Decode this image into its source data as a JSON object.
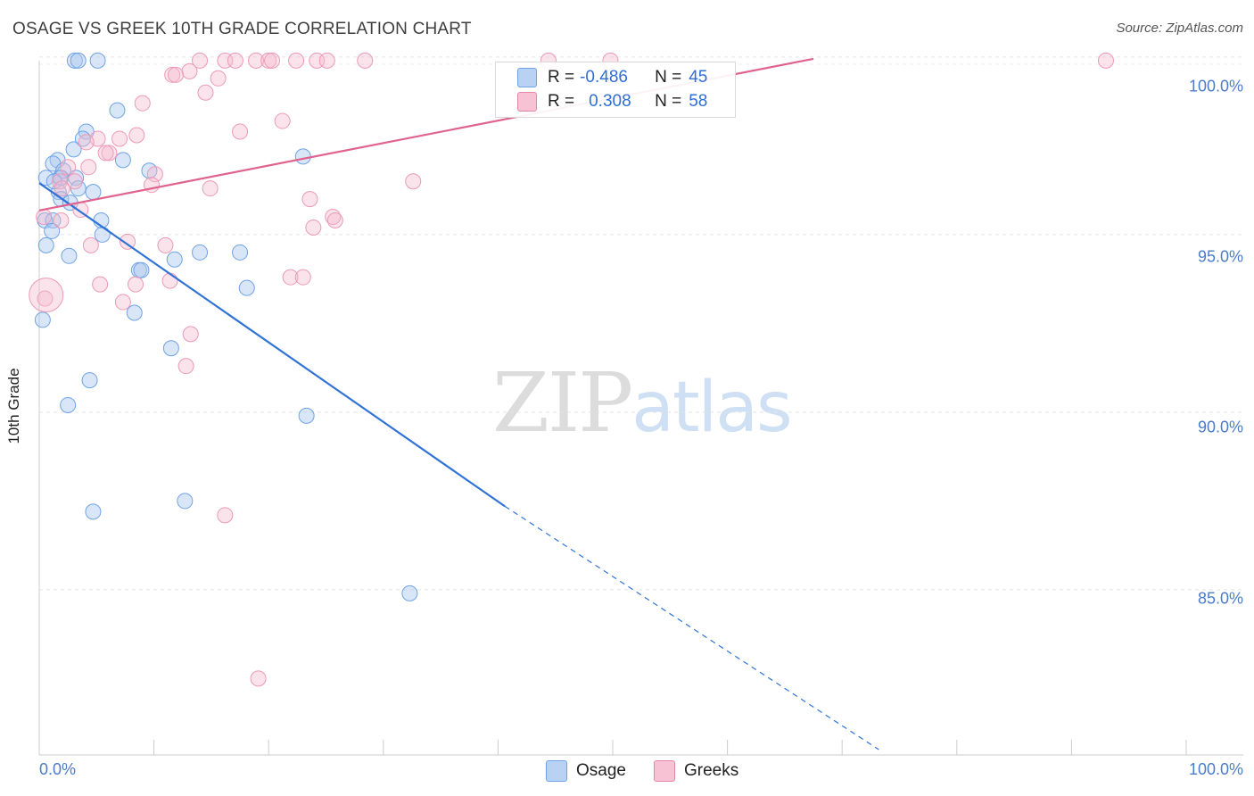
{
  "title": "OSAGE VS GREEK 10TH GRADE CORRELATION CHART",
  "source": "Source: ZipAtlas.com",
  "watermark": {
    "zip": "ZIP",
    "atlas": "atlas"
  },
  "legend": {
    "r_label": "R =",
    "n_label": "N =",
    "series": [
      {
        "name": "Osage",
        "r": "-0.486",
        "n": "45",
        "color": "#6fa3e6",
        "fill": "#b9d2f3"
      },
      {
        "name": "Greeks",
        "r": "0.308",
        "n": "58",
        "color": "#e986a7",
        "fill": "#f7c3d4"
      }
    ]
  },
  "chart_data": {
    "type": "scatter",
    "title": "OSAGE VS GREEK 10TH GRADE CORRELATION CHART",
    "xlabel": "",
    "ylabel": "10th Grade",
    "xlim": [
      0,
      100
    ],
    "ylim": [
      80.5,
      100.4
    ],
    "x_tick_labels": [
      "0.0%",
      "100.0%"
    ],
    "y_ticks": [
      85,
      90,
      95,
      100
    ],
    "y_tick_labels": [
      "85.0%",
      "90.0%",
      "95.0%",
      "100.0%"
    ],
    "series": [
      {
        "name": "Osage",
        "color": "#3a78d4",
        "points": [
          [
            3.1,
            99.9
          ],
          [
            3.4,
            99.9
          ],
          [
            5.1,
            99.9
          ],
          [
            6.8,
            98.5
          ],
          [
            4.1,
            97.9
          ],
          [
            3.8,
            97.7
          ],
          [
            3,
            97.4
          ],
          [
            7.3,
            97.1
          ],
          [
            1.6,
            97.1
          ],
          [
            1.2,
            97
          ],
          [
            1.8,
            96.6
          ],
          [
            0.6,
            96.6
          ],
          [
            2.1,
            96.8
          ],
          [
            1.9,
            96.6
          ],
          [
            3.2,
            96.6
          ],
          [
            1.7,
            96.2
          ],
          [
            3.4,
            96.3
          ],
          [
            4.7,
            96.2
          ],
          [
            1.9,
            96
          ],
          [
            2.7,
            95.9
          ],
          [
            0.5,
            95.4
          ],
          [
            1.2,
            95.4
          ],
          [
            5.4,
            95.4
          ],
          [
            1.1,
            95.1
          ],
          [
            5.5,
            95
          ],
          [
            23,
            97.2
          ],
          [
            9.6,
            96.8
          ],
          [
            0.6,
            94.7
          ],
          [
            2.6,
            94.4
          ],
          [
            14,
            94.5
          ],
          [
            17.5,
            94.5
          ],
          [
            11.8,
            94.3
          ],
          [
            8.7,
            94
          ],
          [
            8.9,
            94
          ],
          [
            18.1,
            93.5
          ],
          [
            8.3,
            92.8
          ],
          [
            0.3,
            92.6
          ],
          [
            11.5,
            91.8
          ],
          [
            4.4,
            90.9
          ],
          [
            2.5,
            90.2
          ],
          [
            23.3,
            89.9
          ],
          [
            12.7,
            87.5
          ],
          [
            4.7,
            87.2
          ],
          [
            32.3,
            84.9
          ],
          [
            1.3,
            96.5
          ]
        ],
        "trend": {
          "x": [
            0,
            40.6
          ],
          "y": [
            96.45,
            87.35
          ],
          "dashed_to": [
            73.2,
            80.5
          ]
        }
      },
      {
        "name": "Greeks",
        "color": "#e0628f",
        "points": [
          [
            14,
            99.9
          ],
          [
            16.2,
            99.9
          ],
          [
            17.1,
            99.9
          ],
          [
            18.9,
            99.9
          ],
          [
            20,
            99.9
          ],
          [
            20.3,
            99.9
          ],
          [
            22.4,
            99.9
          ],
          [
            24.2,
            99.9
          ],
          [
            25.1,
            99.9
          ],
          [
            28.4,
            99.9
          ],
          [
            44.4,
            99.9
          ],
          [
            49.8,
            99.9
          ],
          [
            93,
            99.9
          ],
          [
            11.6,
            99.5
          ],
          [
            13.1,
            99.6
          ],
          [
            11.9,
            99.5
          ],
          [
            15.6,
            99.4
          ],
          [
            14.5,
            99
          ],
          [
            9,
            98.7
          ],
          [
            21.2,
            98.2
          ],
          [
            8.5,
            97.8
          ],
          [
            7,
            97.7
          ],
          [
            5.1,
            97.7
          ],
          [
            17.5,
            97.9
          ],
          [
            4.1,
            97.6
          ],
          [
            6.1,
            97.3
          ],
          [
            5.8,
            97.3
          ],
          [
            2.5,
            96.9
          ],
          [
            4.3,
            96.9
          ],
          [
            10.1,
            96.7
          ],
          [
            3.1,
            96.5
          ],
          [
            1.8,
            96.5
          ],
          [
            9.8,
            96.4
          ],
          [
            2,
            96.3
          ],
          [
            14.9,
            96.3
          ],
          [
            32.6,
            96.5
          ],
          [
            23.6,
            96
          ],
          [
            3.6,
            95.7
          ],
          [
            0.4,
            95.5
          ],
          [
            25.6,
            95.5
          ],
          [
            25.8,
            95.4
          ],
          [
            1.9,
            95.4
          ],
          [
            23.9,
            95.2
          ],
          [
            7.7,
            94.8
          ],
          [
            4.5,
            94.7
          ],
          [
            11,
            94.7
          ],
          [
            21.9,
            93.8
          ],
          [
            23,
            93.8
          ],
          [
            11.4,
            93.7
          ],
          [
            5.3,
            93.6
          ],
          [
            8.4,
            93.6
          ],
          [
            0.5,
            93.2
          ],
          [
            7.3,
            93.1
          ],
          [
            13.2,
            92.2
          ],
          [
            12.8,
            91.3
          ],
          [
            16.2,
            87.1
          ],
          [
            19.1,
            82.5
          ],
          [
            0.6,
            93.3
          ]
        ],
        "trend": {
          "x": [
            0,
            67.5
          ],
          "y": [
            95.68,
            99.95
          ]
        }
      }
    ]
  }
}
